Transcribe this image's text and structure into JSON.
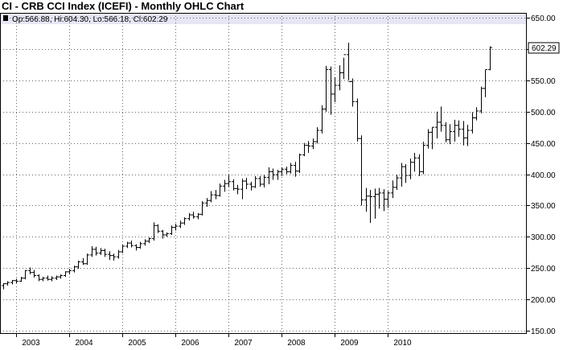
{
  "title": "CI - CRB CCI Index (ICEFI) - Monthly OHLC Chart",
  "info": {
    "text": "Op:566.88, Hi:604.30, Lo:566.18, Cl:602.29",
    "last_price_label": "602.29"
  },
  "colors": {
    "background": "#ffffff",
    "info_band": "#e6e6f5",
    "bars": "#000000",
    "grid": "#000000"
  },
  "chart_data": {
    "type": "ohlc",
    "title": "CI - CRB CCI Index (ICEFI) - Monthly OHLC Chart",
    "ylim": [
      150,
      650
    ],
    "y_ticks": [
      150,
      200,
      250,
      300,
      350,
      400,
      450,
      500,
      550,
      600,
      650
    ],
    "y_tick_labels": [
      "150.00",
      "200.00",
      "250.00",
      "300.00",
      "350.00",
      "400.00",
      "450.00",
      "500.00",
      "550.00",
      "600.00",
      "650.00"
    ],
    "x_tick_labels": [
      "2003",
      "2004",
      "2005",
      "2006",
      "2007",
      "2008",
      "2009",
      "2010"
    ],
    "x_tick_years": [
      2003,
      2004,
      2005,
      2006,
      2007,
      2008,
      2009,
      2010
    ],
    "grid": true,
    "last_price": 602.29,
    "series_start": "2002-10",
    "bars": [
      [
        222,
        226,
        216,
        225
      ],
      [
        225,
        229,
        222,
        227
      ],
      [
        227,
        231,
        224,
        230
      ],
      [
        230,
        233,
        226,
        229
      ],
      [
        229,
        236,
        228,
        234
      ],
      [
        234,
        247,
        232,
        246
      ],
      [
        246,
        251,
        240,
        243
      ],
      [
        243,
        247,
        235,
        238
      ],
      [
        238,
        240,
        229,
        232
      ],
      [
        232,
        236,
        229,
        234
      ],
      [
        234,
        238,
        230,
        232
      ],
      [
        232,
        237,
        229,
        234
      ],
      [
        234,
        238,
        231,
        236
      ],
      [
        236,
        240,
        233,
        238
      ],
      [
        238,
        245,
        236,
        244
      ],
      [
        244,
        249,
        240,
        246
      ],
      [
        246,
        254,
        243,
        252
      ],
      [
        252,
        262,
        249,
        260
      ],
      [
        260,
        266,
        255,
        257
      ],
      [
        257,
        273,
        255,
        271
      ],
      [
        271,
        285,
        268,
        280
      ],
      [
        280,
        284,
        270,
        274
      ],
      [
        274,
        282,
        271,
        278
      ],
      [
        278,
        281,
        268,
        272
      ],
      [
        272,
        277,
        263,
        270
      ],
      [
        270,
        273,
        262,
        268
      ],
      [
        268,
        279,
        265,
        276
      ],
      [
        276,
        288,
        274,
        285
      ],
      [
        285,
        292,
        282,
        290
      ],
      [
        290,
        294,
        283,
        286
      ],
      [
        286,
        288,
        278,
        283
      ],
      [
        283,
        292,
        281,
        289
      ],
      [
        289,
        296,
        286,
        293
      ],
      [
        293,
        299,
        290,
        297
      ],
      [
        297,
        323,
        294,
        318
      ],
      [
        318,
        320,
        306,
        309
      ],
      [
        309,
        311,
        297,
        303
      ],
      [
        303,
        307,
        300,
        305
      ],
      [
        305,
        318,
        303,
        315
      ],
      [
        315,
        321,
        310,
        317
      ],
      [
        317,
        326,
        314,
        322
      ],
      [
        322,
        331,
        319,
        329
      ],
      [
        329,
        338,
        326,
        335
      ],
      [
        335,
        340,
        329,
        332
      ],
      [
        332,
        338,
        328,
        336
      ],
      [
        336,
        357,
        334,
        354
      ],
      [
        354,
        362,
        348,
        358
      ],
      [
        358,
        373,
        355,
        367
      ],
      [
        367,
        375,
        360,
        366
      ],
      [
        366,
        385,
        364,
        381
      ],
      [
        381,
        391,
        372,
        385
      ],
      [
        385,
        399,
        380,
        388
      ],
      [
        388,
        392,
        374,
        377
      ],
      [
        377,
        383,
        368,
        376
      ],
      [
        376,
        393,
        360,
        389
      ],
      [
        389,
        394,
        376,
        384
      ],
      [
        384,
        388,
        374,
        380
      ],
      [
        380,
        397,
        378,
        393
      ],
      [
        393,
        397,
        380,
        384
      ],
      [
        384,
        399,
        379,
        395
      ],
      [
        395,
        411,
        384,
        404
      ],
      [
        404,
        409,
        391,
        399
      ],
      [
        399,
        407,
        391,
        404
      ],
      [
        404,
        411,
        397,
        408
      ],
      [
        408,
        412,
        400,
        404
      ],
      [
        404,
        418,
        401,
        414
      ],
      [
        414,
        420,
        396,
        405
      ],
      [
        405,
        433,
        402,
        431
      ],
      [
        431,
        450,
        429,
        446
      ],
      [
        446,
        453,
        434,
        445
      ],
      [
        445,
        457,
        440,
        452
      ],
      [
        452,
        475,
        449,
        470
      ],
      [
        470,
        510,
        465,
        504
      ],
      [
        504,
        573,
        500,
        567
      ],
      [
        567,
        572,
        495,
        528
      ],
      [
        528,
        555,
        515,
        542
      ],
      [
        542,
        574,
        534,
        562
      ],
      [
        562,
        586,
        552,
        591
      ],
      [
        591,
        610,
        550,
        548
      ],
      [
        548,
        553,
        508,
        516
      ],
      [
        516,
        521,
        452,
        457
      ],
      [
        457,
        462,
        350,
        359
      ],
      [
        359,
        378,
        340,
        365
      ],
      [
        365,
        375,
        322,
        364
      ],
      [
        364,
        377,
        329,
        368
      ],
      [
        368,
        378,
        345,
        370
      ],
      [
        370,
        376,
        341,
        360
      ],
      [
        360,
        373,
        346,
        370
      ],
      [
        370,
        390,
        362,
        379
      ],
      [
        379,
        399,
        375,
        394
      ],
      [
        394,
        418,
        380,
        412
      ],
      [
        412,
        416,
        386,
        398
      ],
      [
        398,
        425,
        392,
        419
      ],
      [
        419,
        434,
        404,
        426
      ],
      [
        426,
        432,
        397,
        404
      ],
      [
        404,
        452,
        400,
        446
      ],
      [
        446,
        472,
        441,
        467
      ],
      [
        467,
        475,
        440,
        475
      ],
      [
        475,
        500,
        457,
        483
      ],
      [
        483,
        508,
        468,
        478
      ],
      [
        478,
        483,
        451,
        455
      ],
      [
        455,
        480,
        448,
        468
      ],
      [
        468,
        487,
        452,
        478
      ],
      [
        478,
        486,
        460,
        472
      ],
      [
        472,
        485,
        446,
        458
      ],
      [
        458,
        479,
        445,
        470
      ],
      [
        470,
        499,
        465,
        490
      ],
      [
        490,
        507,
        486,
        501
      ],
      [
        501,
        540,
        497,
        537
      ],
      [
        537,
        567,
        523,
        567
      ],
      [
        567,
        604.3,
        566.18,
        602.29
      ]
    ]
  }
}
